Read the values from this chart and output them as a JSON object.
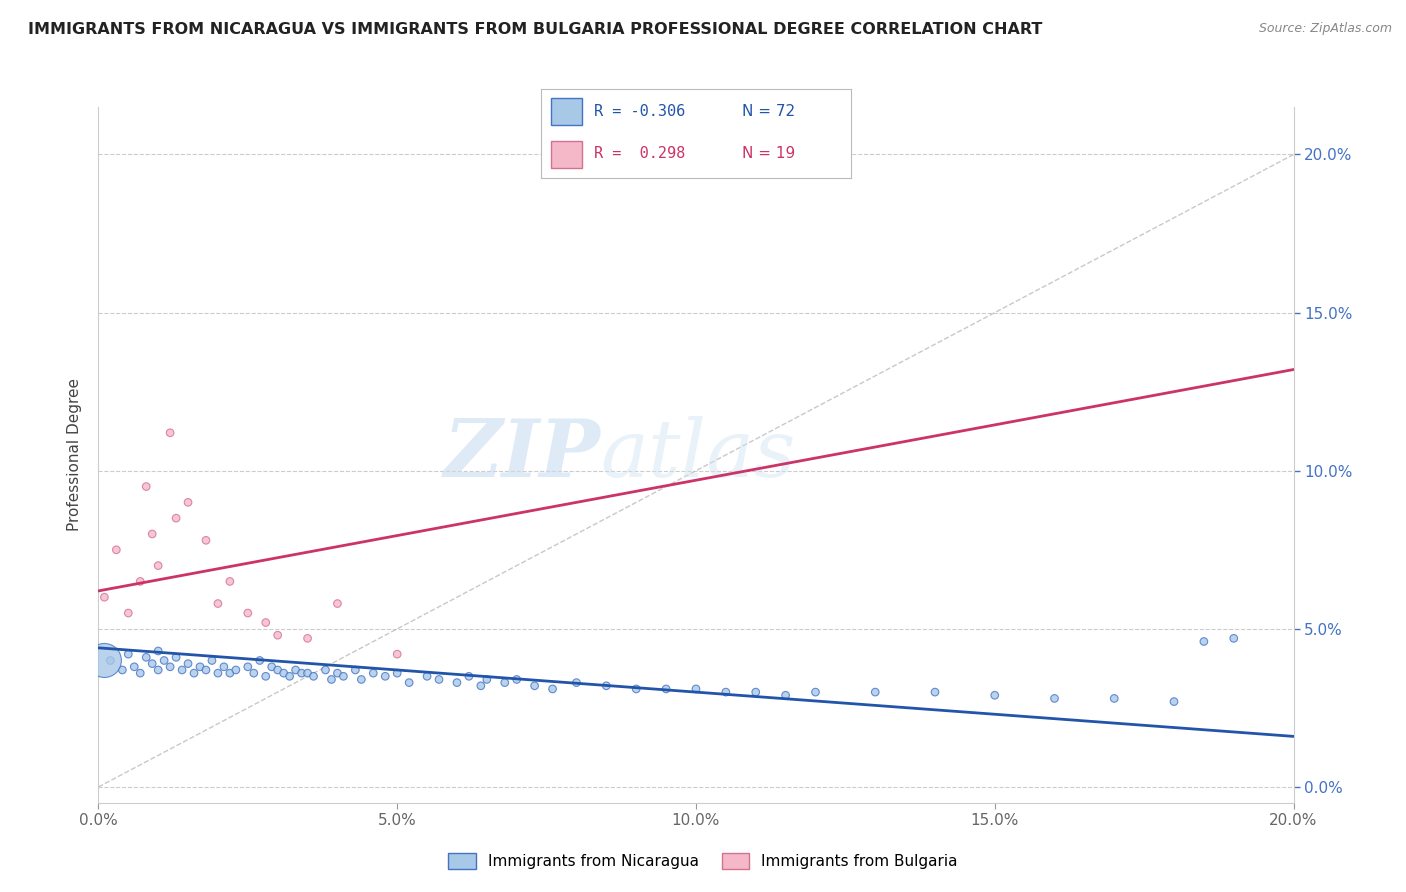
{
  "title": "IMMIGRANTS FROM NICARAGUA VS IMMIGRANTS FROM BULGARIA PROFESSIONAL DEGREE CORRELATION CHART",
  "source": "Source: ZipAtlas.com",
  "ylabel": "Professional Degree",
  "xlim": [
    0.0,
    0.2
  ],
  "ylim": [
    -0.005,
    0.215
  ],
  "x_ticks": [
    0.0,
    0.05,
    0.1,
    0.15,
    0.2
  ],
  "x_tick_labels": [
    "0.0%",
    "5.0%",
    "10.0%",
    "15.0%",
    "20.0%"
  ],
  "y_ticks": [
    0.0,
    0.05,
    0.1,
    0.15,
    0.2
  ],
  "y_tick_labels": [
    "0.0%",
    "5.0%",
    "10.0%",
    "15.0%",
    "20.0%"
  ],
  "watermark_zip": "ZIP",
  "watermark_atlas": "atlas",
  "legend_r1": "R = -0.306",
  "legend_n1": "N = 72",
  "legend_r2": "R =  0.298",
  "legend_n2": "N = 19",
  "blue_fill": "#a8c8e8",
  "blue_edge": "#4472c4",
  "pink_fill": "#f4b8c8",
  "pink_edge": "#d47090",
  "blue_trend_color": "#2255aa",
  "pink_trend_color": "#cc3366",
  "dashed_color": "#bbbbbb",
  "right_tick_color": "#4472c4",
  "grid_color": "#cccccc",
  "title_color": "#222222",
  "source_color": "#888888",
  "nicaragua_points": [
    [
      0.002,
      0.04
    ],
    [
      0.004,
      0.037
    ],
    [
      0.005,
      0.042
    ],
    [
      0.006,
      0.038
    ],
    [
      0.007,
      0.036
    ],
    [
      0.008,
      0.041
    ],
    [
      0.009,
      0.039
    ],
    [
      0.01,
      0.043
    ],
    [
      0.01,
      0.037
    ],
    [
      0.011,
      0.04
    ],
    [
      0.012,
      0.038
    ],
    [
      0.013,
      0.041
    ],
    [
      0.014,
      0.037
    ],
    [
      0.015,
      0.039
    ],
    [
      0.016,
      0.036
    ],
    [
      0.017,
      0.038
    ],
    [
      0.018,
      0.037
    ],
    [
      0.019,
      0.04
    ],
    [
      0.02,
      0.036
    ],
    [
      0.021,
      0.038
    ],
    [
      0.022,
      0.036
    ],
    [
      0.023,
      0.037
    ],
    [
      0.025,
      0.038
    ],
    [
      0.026,
      0.036
    ],
    [
      0.027,
      0.04
    ],
    [
      0.028,
      0.035
    ],
    [
      0.029,
      0.038
    ],
    [
      0.03,
      0.037
    ],
    [
      0.031,
      0.036
    ],
    [
      0.032,
      0.035
    ],
    [
      0.033,
      0.037
    ],
    [
      0.034,
      0.036
    ],
    [
      0.035,
      0.036
    ],
    [
      0.036,
      0.035
    ],
    [
      0.038,
      0.037
    ],
    [
      0.039,
      0.034
    ],
    [
      0.04,
      0.036
    ],
    [
      0.041,
      0.035
    ],
    [
      0.043,
      0.037
    ],
    [
      0.044,
      0.034
    ],
    [
      0.046,
      0.036
    ],
    [
      0.048,
      0.035
    ],
    [
      0.05,
      0.036
    ],
    [
      0.052,
      0.033
    ],
    [
      0.055,
      0.035
    ],
    [
      0.057,
      0.034
    ],
    [
      0.06,
      0.033
    ],
    [
      0.062,
      0.035
    ],
    [
      0.064,
      0.032
    ],
    [
      0.065,
      0.034
    ],
    [
      0.068,
      0.033
    ],
    [
      0.07,
      0.034
    ],
    [
      0.073,
      0.032
    ],
    [
      0.076,
      0.031
    ],
    [
      0.08,
      0.033
    ],
    [
      0.085,
      0.032
    ],
    [
      0.09,
      0.031
    ],
    [
      0.095,
      0.031
    ],
    [
      0.1,
      0.031
    ],
    [
      0.105,
      0.03
    ],
    [
      0.11,
      0.03
    ],
    [
      0.115,
      0.029
    ],
    [
      0.12,
      0.03
    ],
    [
      0.13,
      0.03
    ],
    [
      0.14,
      0.03
    ],
    [
      0.15,
      0.029
    ],
    [
      0.16,
      0.028
    ],
    [
      0.17,
      0.028
    ],
    [
      0.18,
      0.027
    ],
    [
      0.185,
      0.046
    ],
    [
      0.19,
      0.047
    ],
    [
      0.001,
      0.04
    ]
  ],
  "nicaragua_sizes": [
    30,
    30,
    30,
    30,
    30,
    30,
    30,
    30,
    30,
    30,
    30,
    30,
    30,
    30,
    30,
    30,
    30,
    30,
    30,
    30,
    30,
    30,
    30,
    30,
    30,
    30,
    30,
    30,
    30,
    30,
    30,
    30,
    30,
    30,
    30,
    30,
    30,
    30,
    30,
    30,
    30,
    30,
    30,
    30,
    30,
    30,
    30,
    30,
    30,
    30,
    30,
    30,
    30,
    30,
    30,
    30,
    30,
    30,
    30,
    30,
    30,
    30,
    30,
    30,
    30,
    30,
    30,
    30,
    30,
    30,
    30,
    600
  ],
  "bulgaria_points": [
    [
      0.001,
      0.06
    ],
    [
      0.003,
      0.075
    ],
    [
      0.005,
      0.055
    ],
    [
      0.007,
      0.065
    ],
    [
      0.008,
      0.095
    ],
    [
      0.009,
      0.08
    ],
    [
      0.01,
      0.07
    ],
    [
      0.012,
      0.112
    ],
    [
      0.013,
      0.085
    ],
    [
      0.015,
      0.09
    ],
    [
      0.018,
      0.078
    ],
    [
      0.02,
      0.058
    ],
    [
      0.022,
      0.065
    ],
    [
      0.025,
      0.055
    ],
    [
      0.028,
      0.052
    ],
    [
      0.03,
      0.048
    ],
    [
      0.035,
      0.047
    ],
    [
      0.04,
      0.058
    ],
    [
      0.05,
      0.042
    ]
  ],
  "bulgaria_sizes": [
    30,
    30,
    30,
    30,
    30,
    30,
    30,
    30,
    30,
    30,
    30,
    30,
    30,
    30,
    30,
    30,
    30,
    30,
    30
  ],
  "blue_trend_x": [
    0.0,
    0.2
  ],
  "blue_trend_y": [
    0.044,
    0.016
  ],
  "pink_trend_x": [
    0.0,
    0.2
  ],
  "pink_trend_y": [
    0.062,
    0.132
  ],
  "dashed_trend_x": [
    0.0,
    0.2
  ],
  "dashed_trend_y": [
    0.0,
    0.2
  ]
}
